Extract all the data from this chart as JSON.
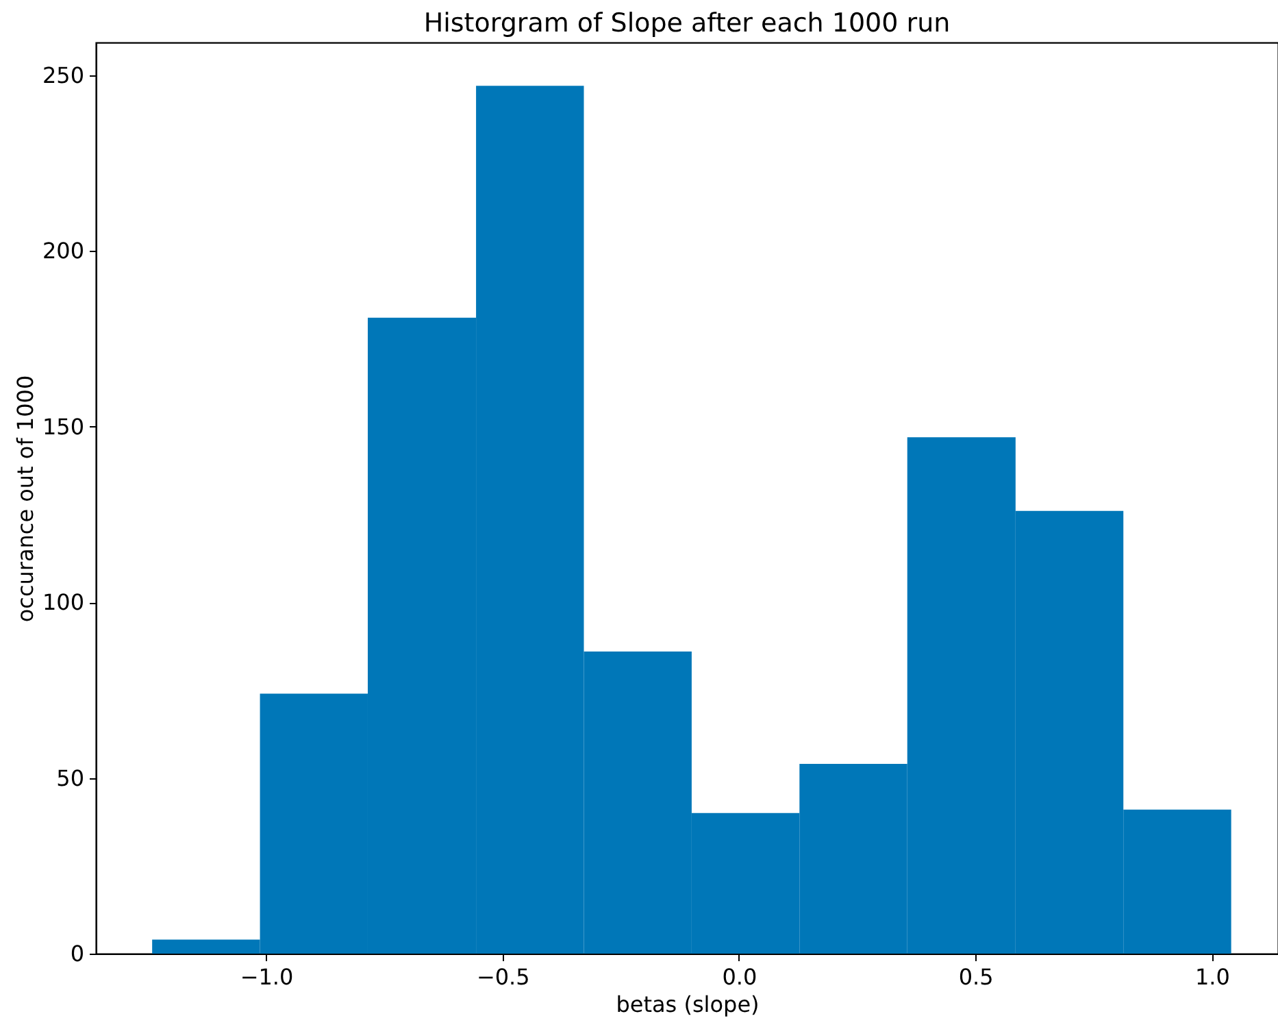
{
  "chart_data": {
    "type": "histogram",
    "title": "Historgram of Slope after each 1000 run",
    "xlabel": "betas (slope)",
    "ylabel": "occurance out of 1000",
    "bins": [
      -1.241,
      -1.013,
      -0.785,
      -0.556,
      -0.328,
      -0.1,
      0.128,
      0.356,
      0.585,
      0.813,
      1.041
    ],
    "values": [
      4,
      74,
      181,
      247,
      86,
      40,
      54,
      147,
      126,
      41
    ],
    "color": "#0077b8",
    "xlim": [
      -1.36,
      1.14
    ],
    "xticks": [
      {
        "value": -1.0,
        "label": "−1.0"
      },
      {
        "value": -0.5,
        "label": "−0.5"
      },
      {
        "value": 0.0,
        "label": "0.0"
      },
      {
        "value": 0.5,
        "label": "0.5"
      },
      {
        "value": 1.0,
        "label": "1.0"
      }
    ],
    "ylim": [
      0,
      259.35
    ],
    "yticks": [
      0,
      50,
      100,
      150,
      200,
      250
    ],
    "grid": false
  }
}
